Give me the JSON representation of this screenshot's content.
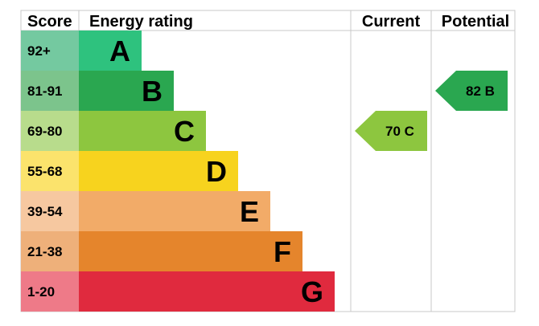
{
  "chart_data": {
    "type": "table",
    "headers": {
      "score": "Score",
      "rating": "Energy rating",
      "current": "Current",
      "potential": "Potential"
    },
    "bands": [
      {
        "range": "92+",
        "letter": "A",
        "color": "#2ec27e",
        "score_bg": "#74c9a0"
      },
      {
        "range": "81-91",
        "letter": "B",
        "color": "#2aa750",
        "score_bg": "#7cc48c"
      },
      {
        "range": "69-80",
        "letter": "C",
        "color": "#8dc63f",
        "score_bg": "#b8dc8c"
      },
      {
        "range": "55-68",
        "letter": "D",
        "color": "#f7d31e",
        "score_bg": "#fbe36c"
      },
      {
        "range": "39-54",
        "letter": "E",
        "color": "#f2ab68",
        "score_bg": "#f6c8a0"
      },
      {
        "range": "21-38",
        "letter": "F",
        "color": "#e5852c",
        "score_bg": "#eeb07a"
      },
      {
        "range": "1-20",
        "letter": "G",
        "color": "#e02a3e",
        "score_bg": "#ee7a88"
      }
    ],
    "current": {
      "value": 70,
      "letter": "C",
      "label": "70 C",
      "color": "#8dc63f"
    },
    "potential": {
      "value": 82,
      "letter": "B",
      "label": "82 B",
      "color": "#2aa750"
    }
  }
}
